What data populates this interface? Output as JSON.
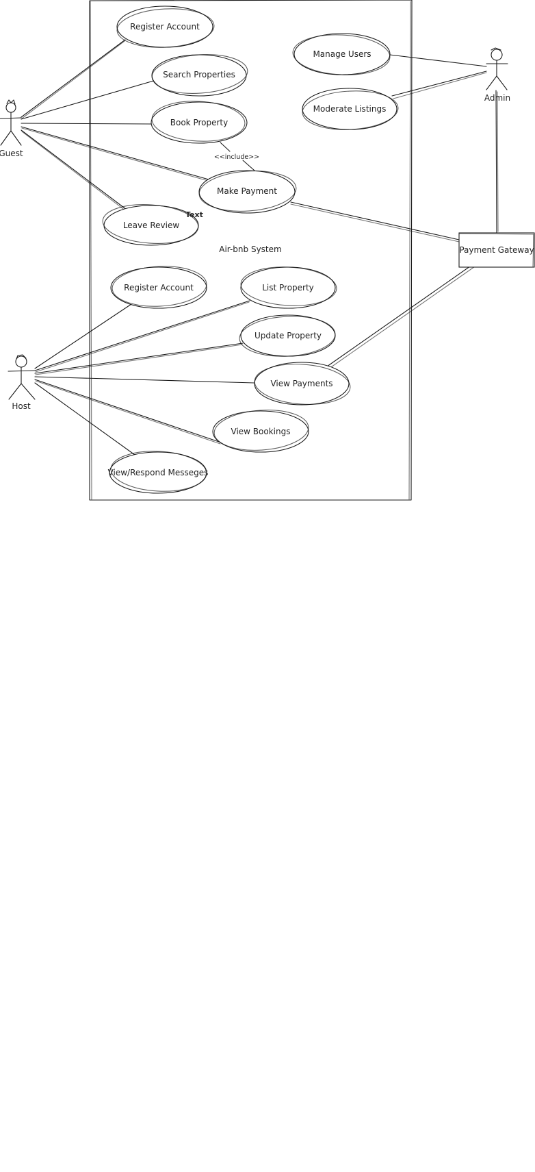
{
  "system": {
    "label": "Air-bnb System"
  },
  "actors": {
    "guest": "Guest",
    "host": "Host",
    "admin": "Admin"
  },
  "external": {
    "payment_gateway": "Payment Gateway"
  },
  "use_cases": {
    "guest_register": "Register Account",
    "search_properties": "Search Properties",
    "book_property": "Book Property",
    "make_payment": "Make Payment",
    "leave_review": "Leave Review",
    "manage_users": "Manage Users",
    "moderate_listings": "Moderate Listings",
    "host_register": "Register Account",
    "list_property": "List Property",
    "update_property": "Update Property",
    "view_payments": "View Payments",
    "view_bookings": "View Bookings",
    "view_respond_messages": "View/Respond Messeges"
  },
  "annotations": {
    "include": "<<include>>",
    "stray_text": "Text"
  }
}
